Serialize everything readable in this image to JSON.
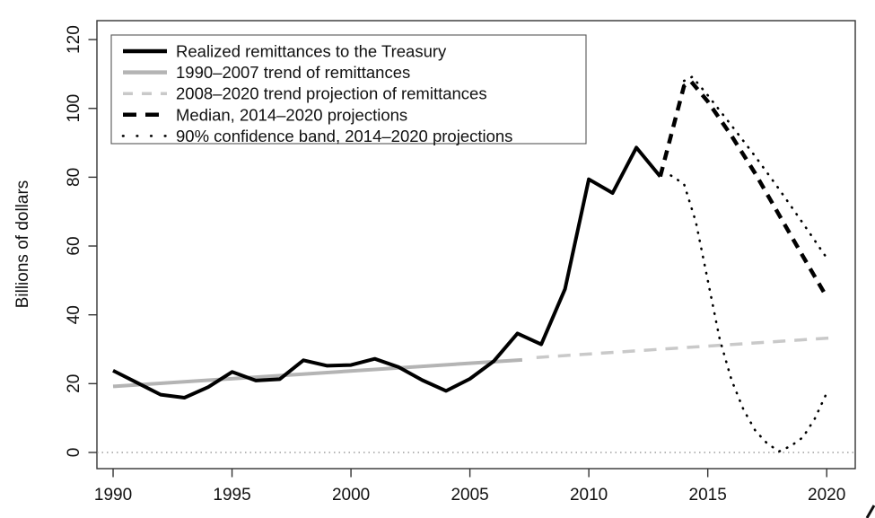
{
  "figure": {
    "background": "#ffffff",
    "frame_color": "#333333",
    "zero_line_color": "#8a8a8a"
  },
  "legend": {
    "items": [
      {
        "label": "Realized remittances to the Treasury",
        "color": "#000000",
        "width": 4.5,
        "style": "solid",
        "dash": null
      },
      {
        "label": "1990–2007 trend of remittances",
        "color": "#b4b4b4",
        "width": 4.5,
        "style": "solid",
        "dash": null
      },
      {
        "label": "2008–2020 trend projection of remittances",
        "color": "#c9c9c9",
        "width": 3.5,
        "style": "dash",
        "dash": "11 10"
      },
      {
        "label": "Median, 2014–2020 projections",
        "color": "#000000",
        "width": 4.5,
        "style": "dash",
        "dash": "15 10"
      },
      {
        "label": "90% confidence band, 2014–2020 projections",
        "color": "#000000",
        "width": 2.6,
        "style": "dot",
        "dash": "0.6 15"
      }
    ]
  },
  "chart_data": {
    "type": "line",
    "title": "",
    "xlabel": "",
    "ylabel": "Billions of dollars",
    "xlim": [
      1989.32,
      2021.2
    ],
    "ylim": [
      -4.7,
      125.5
    ],
    "x_ticks": [
      1990,
      1995,
      2000,
      2005,
      2010,
      2015,
      2020
    ],
    "y_ticks": [
      0,
      20,
      40,
      60,
      80,
      100,
      120
    ],
    "grid": false,
    "zero_line": true,
    "legend_position": "top-left",
    "series": [
      {
        "name": "1990–2007 trend of remittances",
        "color": "#b4b4b4",
        "width": 4,
        "style": "solid",
        "dash": null,
        "in_legend": true,
        "points": [
          [
            1990,
            19.2
          ],
          [
            2007.2,
            26.9
          ]
        ]
      },
      {
        "name": "2008–2020 trend projection of remittances",
        "color": "#c9c9c9",
        "width": 3.5,
        "style": "dash",
        "dash": "14 10",
        "in_legend": true,
        "points": [
          [
            2007.8,
            27.6
          ],
          [
            2020.4,
            33.4
          ]
        ]
      },
      {
        "name": "90% confidence band, 2014–2020 projections (upper)",
        "color": "#000000",
        "width": 2.6,
        "style": "dot",
        "dash": "0.6 8.6",
        "in_legend": true,
        "points": [
          [
            2014,
            108
          ],
          [
            2014.35,
            109.2
          ],
          [
            2015,
            103.8
          ],
          [
            2016,
            95
          ],
          [
            2017,
            86
          ],
          [
            2018,
            76.5
          ],
          [
            2019,
            66.6
          ],
          [
            2020,
            56.5
          ]
        ]
      },
      {
        "name": "90% confidence band, 2014–2020 projections (lower)",
        "color": "#000000",
        "width": 2.6,
        "style": "dot",
        "dash": "0.6 8.6",
        "in_legend": false,
        "points": [
          [
            2013.45,
            80.5
          ],
          [
            2014,
            78
          ],
          [
            2014.5,
            67
          ],
          [
            2015,
            50
          ],
          [
            2015.5,
            33
          ],
          [
            2016,
            21
          ],
          [
            2016.5,
            12.5
          ],
          [
            2017,
            6.3
          ],
          [
            2017.5,
            2.6
          ],
          [
            2018,
            0.3
          ],
          [
            2018.5,
            1.9
          ],
          [
            2019,
            4.4
          ],
          [
            2019.5,
            9.8
          ],
          [
            2020,
            17.3
          ]
        ]
      },
      {
        "name": "Median, 2014–2020 projections",
        "color": "#000000",
        "width": 4.5,
        "style": "dash",
        "dash": "11 8",
        "in_legend": true,
        "points": [
          [
            2013,
            80.2
          ],
          [
            2014,
            106.5
          ],
          [
            2014.3,
            107.8
          ],
          [
            2015,
            102
          ],
          [
            2016,
            92
          ],
          [
            2017,
            81
          ],
          [
            2018,
            69
          ],
          [
            2019,
            57
          ],
          [
            2020,
            45.2
          ]
        ]
      },
      {
        "name": "Realized remittances to the Treasury",
        "color": "#000000",
        "width": 4,
        "style": "solid",
        "dash": null,
        "in_legend": true,
        "points": [
          [
            1990,
            23.8
          ],
          [
            1991,
            20.3
          ],
          [
            1992,
            16.8
          ],
          [
            1993,
            15.9
          ],
          [
            1994,
            19.0
          ],
          [
            1995,
            23.4
          ],
          [
            1996,
            20.9
          ],
          [
            1997,
            21.3
          ],
          [
            1998,
            26.8
          ],
          [
            1999,
            25.2
          ],
          [
            2000,
            25.4
          ],
          [
            2001,
            27.2
          ],
          [
            2002,
            24.8
          ],
          [
            2003,
            21.0
          ],
          [
            2004,
            17.9
          ],
          [
            2005,
            21.4
          ],
          [
            2006,
            26.5
          ],
          [
            2007,
            34.6
          ],
          [
            2008,
            31.4
          ],
          [
            2009,
            47.5
          ],
          [
            2010,
            79.4
          ],
          [
            2011,
            75.4
          ],
          [
            2012,
            88.6
          ],
          [
            2013,
            80.2
          ]
        ]
      }
    ]
  }
}
